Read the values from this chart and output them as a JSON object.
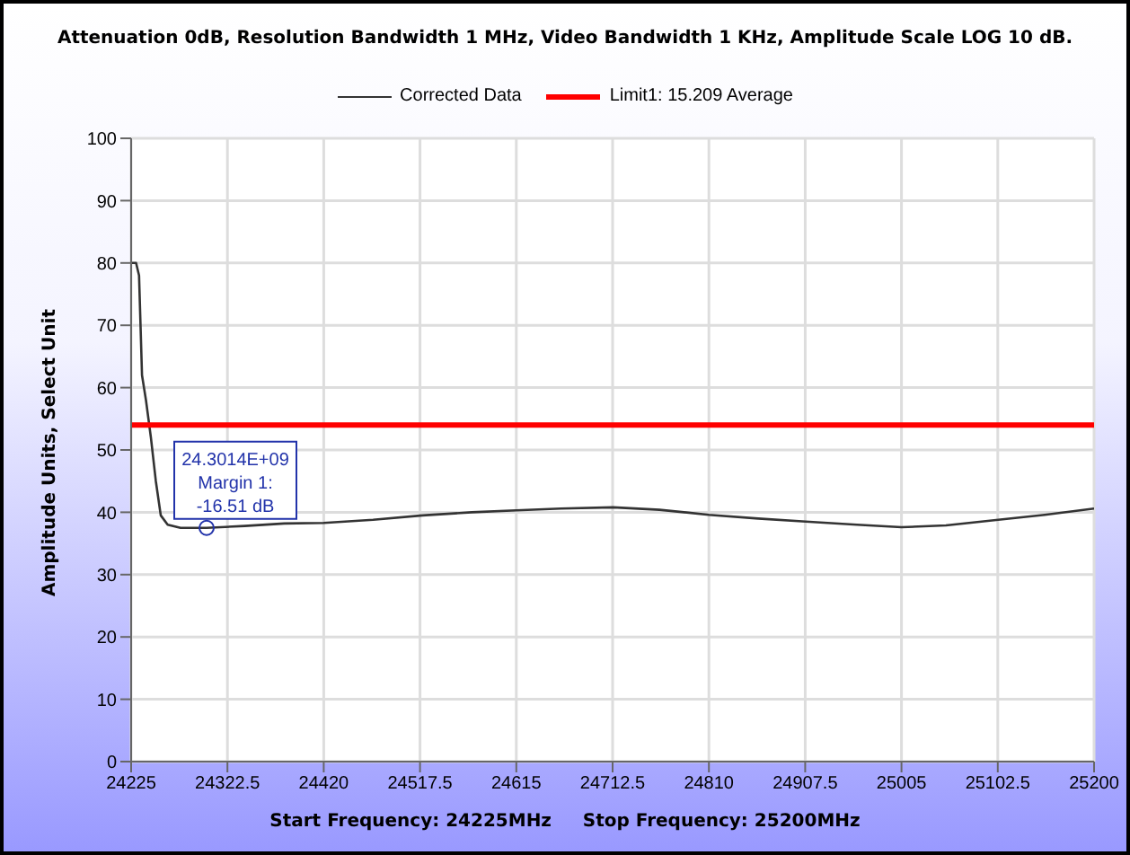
{
  "chart_data": {
    "type": "line",
    "title": "Attenuation 0dB, Resolution Bandwidth 1 MHz, Video Bandwidth 1 KHz, Amplitude Scale LOG 10 dB.",
    "xlabel": "Start Frequency: 24225MHz     Stop Frequency: 25200MHz",
    "ylabel": "Amplitude Units, Select Unit",
    "x": [
      24225,
      24230,
      24233,
      24236,
      24240,
      24245,
      24250,
      24255,
      24262,
      24275,
      24301.4,
      24340,
      24380,
      24420,
      24470,
      24520,
      24570,
      24615,
      24660,
      24713,
      24760,
      24810,
      24860,
      24908,
      24960,
      25005,
      25050,
      25103,
      25150,
      25200
    ],
    "series": [
      {
        "name": "Corrected Data",
        "color": "#333333",
        "values": [
          80,
          80,
          78,
          62,
          58,
          52,
          45,
          39.5,
          38,
          37.5,
          37.5,
          37.8,
          38.2,
          38.3,
          38.8,
          39.5,
          40.0,
          40.3,
          40.6,
          40.8,
          40.4,
          39.6,
          39.0,
          38.5,
          38.0,
          37.6,
          37.9,
          38.8,
          39.6,
          40.6
        ]
      },
      {
        "name": "Limit1: 15.209 Average",
        "color": "#ff0000",
        "x": [
          24225,
          25200
        ],
        "values": [
          54,
          54
        ]
      }
    ],
    "annotations": [
      {
        "text": "24.3014E+09\nMargin 1:\n-16.51 dB",
        "x": 24301.4,
        "y": 37.5
      }
    ],
    "xlim": [
      24225,
      25200
    ],
    "xticks": [
      24225,
      24322.5,
      24420,
      24517.5,
      24615,
      24712.5,
      24810,
      24907.5,
      25005,
      25102.5,
      25200
    ],
    "ylim": [
      0,
      100
    ],
    "yticks": [
      0,
      10,
      20,
      30,
      40,
      50,
      60,
      70,
      80,
      90,
      100
    ],
    "grid": true,
    "legend": "top",
    "marker": "none",
    "line_style": "solid"
  }
}
